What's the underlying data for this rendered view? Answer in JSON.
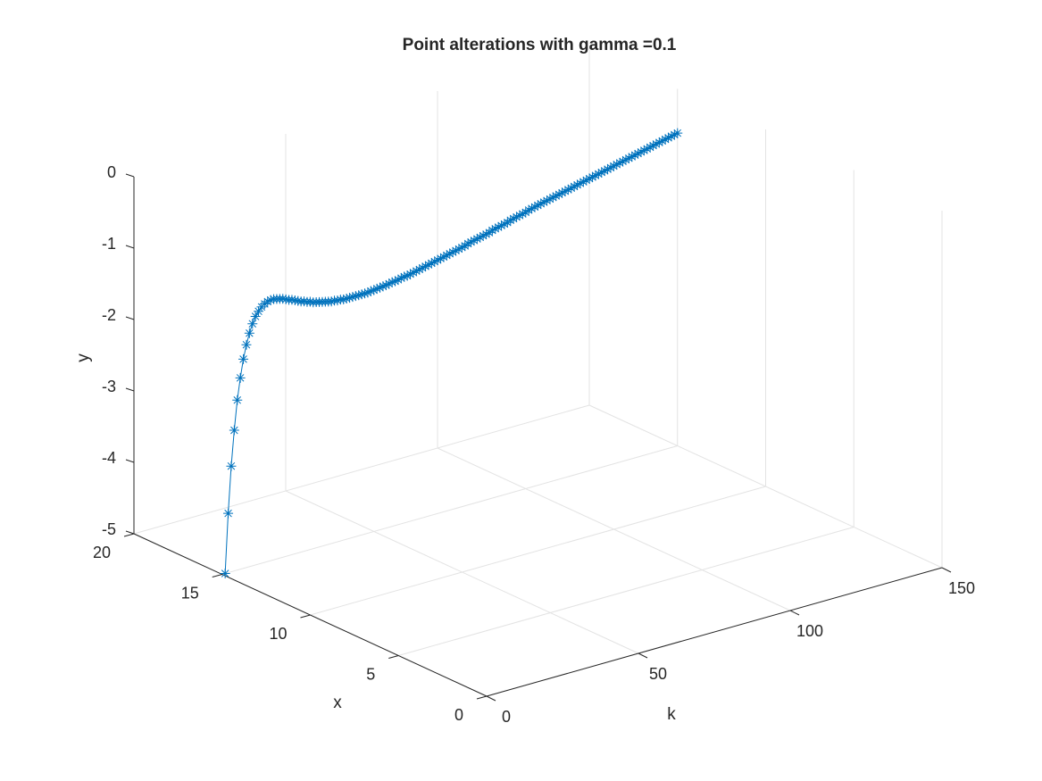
{
  "chart_data": {
    "type": "line",
    "title": "Point alterations with gamma =0.1",
    "marker": "*",
    "colors": {
      "series": "#0072BD",
      "axis": "#262626",
      "grid": "#e3e3e3"
    },
    "xlabel": "k",
    "ylabel": "x",
    "zlabel": "y",
    "k_ticks": [
      "0",
      "50",
      "100",
      "150"
    ],
    "x_ticks": [
      "0",
      "5",
      "10",
      "15",
      "20"
    ],
    "y_ticks": [
      "0",
      "-1",
      "-2",
      "-3",
      "-4",
      "-5"
    ],
    "klim": [
      0,
      150
    ],
    "xlim": [
      0,
      20
    ],
    "ylim": [
      -5,
      0
    ],
    "view": "3-D",
    "grid": true,
    "series": [
      {
        "k": [
          1,
          2,
          3,
          4,
          5,
          6,
          7,
          8,
          9,
          10,
          11,
          12,
          13,
          14,
          15,
          16,
          17,
          18,
          19,
          20,
          21,
          22,
          23,
          24,
          25,
          26,
          27,
          28,
          29,
          30,
          31,
          32,
          33,
          34,
          35,
          36,
          37,
          38,
          39,
          40,
          41,
          42,
          43,
          44,
          45,
          46,
          47,
          48,
          49,
          50,
          51,
          52,
          53,
          54,
          55,
          56,
          57,
          58,
          59,
          60,
          61,
          62,
          63,
          64,
          65,
          66,
          67,
          68,
          69,
          70,
          71,
          72,
          73,
          74,
          75,
          76,
          77,
          78,
          79,
          80,
          81,
          82,
          83,
          84,
          85,
          86,
          87,
          88,
          89,
          90,
          91,
          92,
          93,
          94,
          95,
          96,
          97,
          98,
          99,
          100,
          101,
          102,
          103,
          104,
          105,
          106,
          107,
          108,
          109,
          110,
          111,
          112,
          113,
          114,
          115,
          116,
          117,
          118,
          119,
          120,
          121,
          122,
          123,
          124,
          125,
          126,
          127,
          128,
          129,
          130,
          131,
          132,
          133,
          134,
          135,
          136,
          137,
          138,
          139,
          140,
          141,
          142,
          143,
          144,
          145,
          146,
          147,
          148,
          149,
          150
        ],
        "x": [
          15,
          15,
          15,
          15,
          15,
          15,
          15,
          15,
          15,
          15,
          15,
          15,
          15,
          15,
          15,
          15,
          15,
          15,
          15,
          15,
          15,
          15,
          15,
          15,
          15,
          15,
          15,
          15,
          15,
          15,
          15,
          15,
          15,
          15,
          15,
          15,
          15,
          15,
          15,
          15,
          15,
          15,
          15,
          15,
          15,
          15,
          15,
          15,
          15,
          15,
          15,
          15,
          15,
          15,
          15,
          15,
          15,
          15,
          15,
          15,
          15,
          15,
          15,
          15,
          15,
          15,
          15,
          15,
          15,
          15,
          15,
          15,
          15,
          15,
          15,
          15,
          15,
          15,
          15,
          15,
          15,
          15,
          15,
          15,
          15,
          15,
          15,
          15,
          15,
          15,
          15,
          15,
          15,
          15,
          15,
          15,
          15,
          15,
          15,
          15,
          15,
          15,
          15,
          15,
          15,
          15,
          15,
          15,
          15,
          15,
          15,
          15,
          15,
          15,
          15,
          15,
          15,
          15,
          15,
          15,
          15,
          15,
          15,
          15,
          15,
          15,
          15,
          15,
          15,
          15,
          15,
          15,
          15,
          15,
          15,
          15,
          15,
          15,
          15,
          15,
          15,
          15,
          15,
          15,
          15,
          15,
          15,
          15,
          15,
          15
        ],
        "y": [
          -5.0,
          -4.17,
          -3.52,
          -3.03,
          -2.62,
          -2.32,
          -2.07,
          -1.88,
          -1.73,
          -1.61,
          -1.52,
          -1.46,
          -1.41,
          -1.38,
          -1.36,
          -1.35,
          -1.35,
          -1.36,
          -1.37,
          -1.38,
          -1.4,
          -1.42,
          -1.43,
          -1.45,
          -1.47,
          -1.49,
          -1.5,
          -1.52,
          -1.53,
          -1.55,
          -1.56,
          -1.57,
          -1.58,
          -1.59,
          -1.6,
          -1.61,
          -1.61,
          -1.62,
          -1.62,
          -1.63,
          -1.63,
          -1.63,
          -1.63,
          -1.63,
          -1.63,
          -1.63,
          -1.63,
          -1.63,
          -1.62,
          -1.62,
          -1.61,
          -1.61,
          -1.6,
          -1.6,
          -1.59,
          -1.58,
          -1.58,
          -1.57,
          -1.56,
          -1.55,
          -1.55,
          -1.54,
          -1.53,
          -1.52,
          -1.51,
          -1.5,
          -1.49,
          -1.48,
          -1.47,
          -1.46,
          -1.45,
          -1.44,
          -1.43,
          -1.42,
          -1.41,
          -1.4,
          -1.39,
          -1.38,
          -1.37,
          -1.36,
          -1.34,
          -1.33,
          -1.32,
          -1.31,
          -1.3,
          -1.29,
          -1.28,
          -1.27,
          -1.25,
          -1.24,
          -1.23,
          -1.22,
          -1.21,
          -1.2,
          -1.18,
          -1.17,
          -1.16,
          -1.15,
          -1.14,
          -1.13,
          -1.11,
          -1.1,
          -1.09,
          -1.08,
          -1.07,
          -1.06,
          -1.05,
          -1.04,
          -1.03,
          -1.02,
          -1.01,
          -1.0,
          -0.99,
          -0.98,
          -0.97,
          -0.96,
          -0.95,
          -0.94,
          -0.93,
          -0.92,
          -0.91,
          -0.9,
          -0.89,
          -0.88,
          -0.87,
          -0.86,
          -0.85,
          -0.84,
          -0.83,
          -0.82,
          -0.81,
          -0.8,
          -0.79,
          -0.78,
          -0.77,
          -0.76,
          -0.75,
          -0.74,
          -0.73,
          -0.72,
          -0.71,
          -0.7,
          -0.69,
          -0.68,
          -0.67,
          -0.66,
          -0.65,
          -0.64,
          -0.63,
          -0.62
        ]
      }
    ]
  }
}
